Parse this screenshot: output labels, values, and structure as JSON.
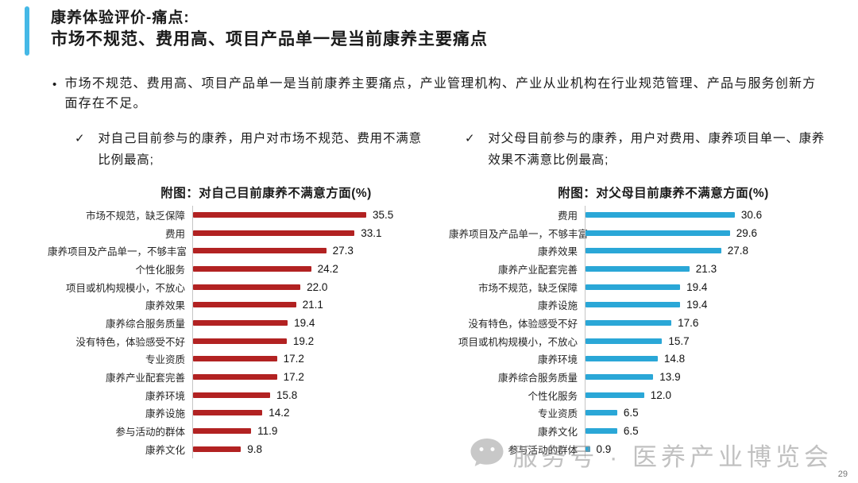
{
  "slide": {
    "title_line1": "康养体验评价-痛点:",
    "title_line2": "市场不规范、费用高、项目产品单一是当前康养主要痛点",
    "accent_color": "#45b8e6",
    "page_number": "29",
    "watermark_text": "服务号 · 医养产业博览会"
  },
  "intro": {
    "marker": "•",
    "text": "市场不规范、费用高、项目产品单一是当前康养主要痛点，产业管理机构、产业从业机构在行业规范管理、产品与服务创新方面存在不足。"
  },
  "findings": [
    {
      "marker": "✓",
      "text": "对自己目前参与的康养，用户对市场不规范、费用不满意比例最高;"
    },
    {
      "marker": "✓",
      "text": "对父母目前参与的康养，用户对费用、康养项目单一、康养效果不满意比例最高;"
    }
  ],
  "chart_data": [
    {
      "type": "bar",
      "orientation": "horizontal",
      "title": "附图：对自己目前康养不满意方面(%)",
      "xlabel": "",
      "ylabel": "",
      "xlim": [
        0,
        38
      ],
      "grid": false,
      "legend": false,
      "bar_color": "#b22222",
      "axis_color": "#c5c5c5",
      "categories": [
        "市场不规范，缺乏保障",
        "费用",
        "康养项目及产品单一，不够丰富",
        "个性化服务",
        "项目或机构规模小，不放心",
        "康养效果",
        "康养综合服务质量",
        "没有特色，体验感受不好",
        "专业资质",
        "康养产业配套完善",
        "康养环境",
        "康养设施",
        "参与活动的群体",
        "康养文化"
      ],
      "values": [
        35.5,
        33.1,
        27.3,
        24.2,
        22.0,
        21.1,
        19.4,
        19.2,
        17.2,
        17.2,
        15.8,
        14.2,
        11.9,
        9.8
      ]
    },
    {
      "type": "bar",
      "orientation": "horizontal",
      "title": "附图：对父母目前康养不满意方面(%)",
      "xlabel": "",
      "ylabel": "",
      "xlim": [
        0,
        38
      ],
      "grid": false,
      "legend": false,
      "bar_color": "#2aa7d7",
      "axis_color": "#c5c5c5",
      "categories": [
        "费用",
        "康养项目及产品单一，不够丰富",
        "康养效果",
        "康养产业配套完善",
        "市场不规范，缺乏保障",
        "康养设施",
        "没有特色，体验感受不好",
        "项目或机构规模小，不放心",
        "康养环境",
        "康养综合服务质量",
        "个性化服务",
        "专业资质",
        "康养文化",
        "参与活动的群体"
      ],
      "values": [
        30.6,
        29.6,
        27.8,
        21.3,
        19.4,
        19.4,
        17.6,
        15.7,
        14.8,
        13.9,
        12.0,
        6.5,
        6.5,
        0.9
      ]
    }
  ]
}
